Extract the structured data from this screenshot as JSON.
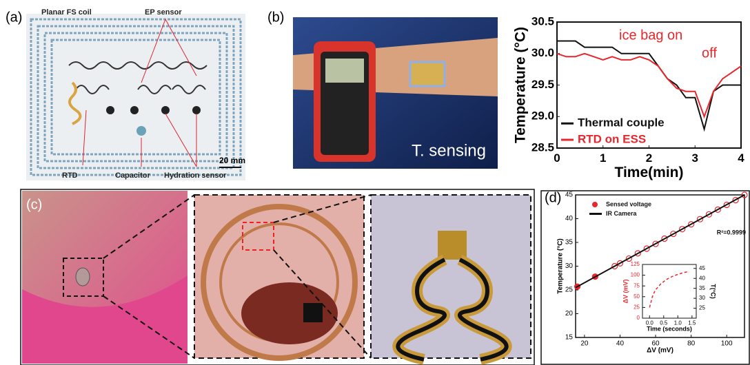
{
  "labels": [
    "(a)",
    "(b)",
    "(c)",
    "(d)"
  ],
  "panel_a": {
    "coil": "Planar FS coil",
    "ep": "EP sensor",
    "rtd": "RTD",
    "capacitor": "Capacitor",
    "hydration": "Hydration sensor",
    "scale": "20 mm"
  },
  "panel_b_photo": {
    "caption": "T. sensing"
  },
  "chart_data": [
    {
      "type": "line",
      "x_label": "Time(min)",
      "y_label": "Temperature (°C)",
      "x": [
        0,
        0.2,
        0.4,
        0.6,
        0.8,
        1.0,
        1.2,
        1.4,
        1.6,
        1.8,
        2.0,
        2.2,
        2.4,
        2.6,
        2.8,
        3.0,
        3.2,
        3.4,
        3.6,
        3.8,
        4.0
      ],
      "series": [
        {
          "name": "Thermal couple",
          "color": "#111111",
          "values": [
            30.2,
            30.2,
            30.2,
            30.1,
            30.1,
            30.1,
            30.1,
            30.0,
            30.0,
            30.0,
            30.0,
            29.8,
            29.6,
            29.5,
            29.3,
            29.3,
            28.8,
            29.4,
            29.5,
            29.5,
            29.5
          ]
        },
        {
          "name": "RTD on ESS",
          "color": "#e8262b",
          "values": [
            30.0,
            29.95,
            29.95,
            30.0,
            29.95,
            29.9,
            29.95,
            29.9,
            29.9,
            29.95,
            29.9,
            29.8,
            29.6,
            29.45,
            29.4,
            29.4,
            29.0,
            29.4,
            29.6,
            29.7,
            29.8
          ]
        }
      ],
      "annotations": [
        "ice bag on",
        "off"
      ],
      "xlim": [
        0,
        4
      ],
      "xticks": [
        0,
        1,
        2,
        3,
        4
      ],
      "ylim": [
        28.5,
        30.5
      ],
      "yticks": [
        28.5,
        {
          "value": 29,
          "label": "29.0"
        },
        29.5,
        {
          "value": 30,
          "label": "30.0"
        },
        30.5
      ],
      "legend": "lower left"
    },
    {
      "type": "scatter",
      "x_label": "ΔV (mV)",
      "y_label": "Temperature (°C)",
      "series": [
        {
          "name": "Sensed voltage",
          "color": "#e8262b",
          "mode": "markers",
          "x": [
            16,
            26,
            37,
            40,
            45,
            50,
            55,
            60,
            65,
            70,
            75,
            80,
            85,
            90,
            95,
            100,
            105,
            110
          ],
          "values": [
            25.7,
            27.8,
            30.0,
            30.6,
            31.6,
            32.7,
            33.7,
            34.7,
            35.8,
            36.8,
            37.8,
            38.8,
            39.9,
            40.9,
            41.9,
            42.9,
            43.9,
            45.0
          ]
        },
        {
          "name": "IR Camera",
          "color": "#111111",
          "mode": "line",
          "x": [
            15,
            110
          ],
          "values": [
            25.5,
            45.0
          ]
        }
      ],
      "annotations": [
        "R²=0.9999"
      ],
      "xlim": [
        15,
        110
      ],
      "xticks": [
        20,
        40,
        60,
        80,
        100
      ],
      "ylim": [
        15,
        45
      ],
      "yticks": [
        15,
        20,
        25,
        30,
        35,
        40,
        45
      ],
      "legend": "upper left"
    },
    {
      "type": "line",
      "x_label": "Time (seconds)",
      "y_label": "ΔV (mV)",
      "y2_label": "T(°C)",
      "x": [
        0,
        0.1,
        0.2,
        0.4,
        0.6,
        0.8,
        1.0,
        1.2,
        1.4
      ],
      "series": [
        {
          "color": "#e8262b",
          "dashed": true,
          "values": [
            25,
            50,
            65,
            80,
            90,
            97,
            102,
            106,
            109
          ]
        }
      ],
      "xlim": [
        -0.25,
        1.65
      ],
      "xticks": [
        {
          "value": 0,
          "label": "0.0"
        },
        0.5,
        {
          "value": 1,
          "label": "1.0"
        },
        1.5
      ],
      "ylim": [
        0,
        125
      ],
      "yticks": [
        0,
        25,
        50,
        75,
        100,
        125
      ],
      "y2lim": [
        20,
        47
      ],
      "y2ticks": [
        25,
        30,
        35,
        40,
        45
      ]
    }
  ]
}
